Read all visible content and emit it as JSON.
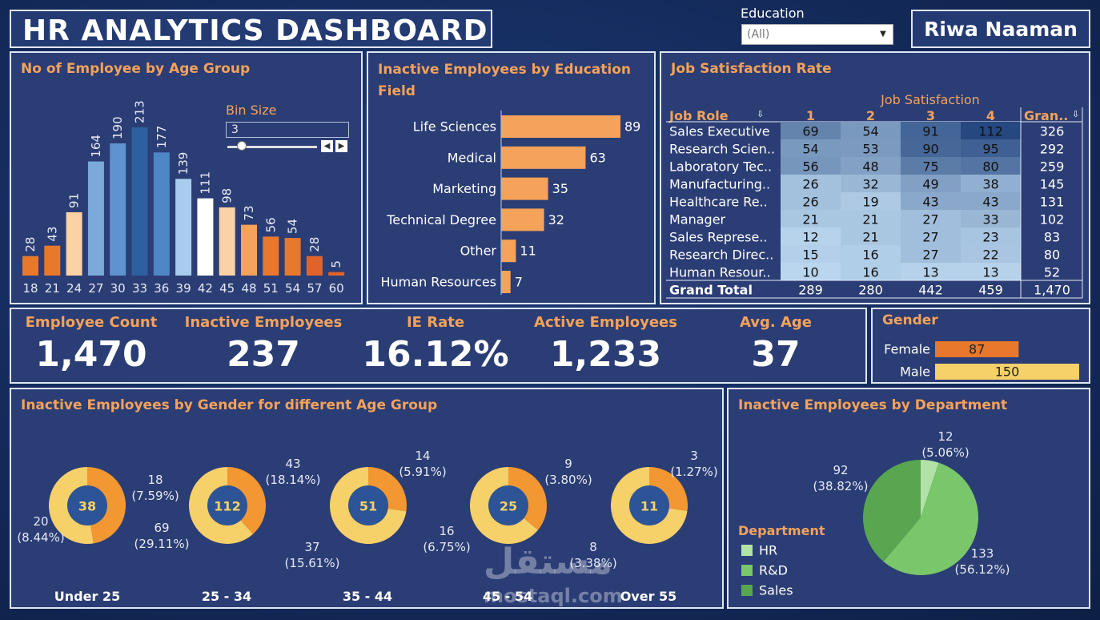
{
  "dashboard_title": "HR ANALYTICS DASHBOARD",
  "author_name": "Riwa Naaman",
  "filter": {
    "label": "Education",
    "value": "(All)"
  },
  "age_panel": {
    "title": "No of Employee by Age Group",
    "bin_label": "Bin Size",
    "bin_value": "3"
  },
  "edu_panel": {
    "title_line1": "Inactive Employees by Education",
    "title_line2": "Field"
  },
  "js_panel": {
    "title": "Job Satisfaction Rate",
    "col_group": "Job Satisfaction",
    "row_header": "Job Role",
    "cols": [
      "1",
      "2",
      "3",
      "4"
    ],
    "grand_header": "Gran..",
    "rows": [
      {
        "role": "Sales Executive",
        "vals": [
          69,
          54,
          91,
          112
        ],
        "total": "326"
      },
      {
        "role": "Research Scien..",
        "vals": [
          54,
          53,
          90,
          95
        ],
        "total": "292"
      },
      {
        "role": "Laboratory Tec..",
        "vals": [
          56,
          48,
          75,
          80
        ],
        "total": "259"
      },
      {
        "role": "Manufacturing..",
        "vals": [
          26,
          32,
          49,
          38
        ],
        "total": "145"
      },
      {
        "role": "Healthcare Re..",
        "vals": [
          26,
          19,
          43,
          43
        ],
        "total": "131"
      },
      {
        "role": "Manager",
        "vals": [
          21,
          21,
          27,
          33
        ],
        "total": "102"
      },
      {
        "role": "Sales Represe..",
        "vals": [
          12,
          21,
          27,
          23
        ],
        "total": "83"
      },
      {
        "role": "Research Direc..",
        "vals": [
          15,
          16,
          27,
          22
        ],
        "total": "80"
      },
      {
        "role": "Human Resour..",
        "vals": [
          10,
          16,
          13,
          13
        ],
        "total": "52"
      }
    ],
    "grand_total_label": "Grand Total",
    "grand_totals": [
      "289",
      "280",
      "442",
      "459",
      "1,470"
    ]
  },
  "kpis": [
    {
      "label": "Employee Count",
      "value": "1,470"
    },
    {
      "label": "Inactive Employees",
      "value": "237"
    },
    {
      "label": "IE Rate",
      "value": "16.12%"
    },
    {
      "label": "Active Employees",
      "value": "1,233"
    },
    {
      "label": "Avg. Age",
      "value": "37"
    }
  ],
  "gender_panel": {
    "title": "Gender"
  },
  "donut_panel": {
    "title": "Inactive Employees by Gender for different Age Group"
  },
  "dept_panel": {
    "title": "Inactive Employees by Department",
    "legend_title": "Department"
  },
  "watermark": {
    "arabic": "مستقل",
    "latin": "mostaql.com"
  },
  "colors": {
    "orange": "#f5a25a",
    "dark_orange": "#e8782c",
    "light_orange": "#fbd2a6",
    "yellow": "#f6d068",
    "donut_orange": "#f29731",
    "navy": "#2d5496",
    "hr_green": "#b3e2a6",
    "rd_green": "#79c66b",
    "sales_green": "#58a650"
  },
  "chart_data": [
    {
      "type": "bar",
      "id": "age",
      "categories": [
        "18",
        "21",
        "24",
        "27",
        "30",
        "33",
        "36",
        "39",
        "42",
        "45",
        "48",
        "51",
        "54",
        "57",
        "60"
      ],
      "values": [
        28,
        43,
        91,
        164,
        190,
        213,
        177,
        139,
        111,
        98,
        73,
        56,
        54,
        28,
        5
      ],
      "colors": [
        "#e8782c",
        "#e8782c",
        "#fbd2a6",
        "#7ba9d9",
        "#5d93cf",
        "#2e5f9e",
        "#4f86c6",
        "#a7ccec",
        "#ffffff",
        "#fbd2a6",
        "#f5a25a",
        "#e8782c",
        "#e8782c",
        "#e0642a",
        "#e0642a"
      ],
      "title": "No of Employee by Age Group"
    },
    {
      "type": "bar",
      "id": "education",
      "orientation": "horizontal",
      "categories": [
        "Life Sciences",
        "Medical",
        "Marketing",
        "Technical Degree",
        "Other",
        "Human Resources"
      ],
      "values": [
        89,
        63,
        35,
        32,
        11,
        7
      ]
    },
    {
      "type": "heatmap",
      "id": "job_satisfaction",
      "x": [
        "1",
        "2",
        "3",
        "4"
      ],
      "y": [
        "Sales Executive",
        "Research Scien..",
        "Laboratory Tec..",
        "Manufacturing..",
        "Healthcare Re..",
        "Manager",
        "Sales Represe..",
        "Research Direc..",
        "Human Resour.."
      ],
      "values": [
        [
          69,
          54,
          91,
          112
        ],
        [
          54,
          53,
          90,
          95
        ],
        [
          56,
          48,
          75,
          80
        ],
        [
          26,
          32,
          49,
          38
        ],
        [
          26,
          19,
          43,
          43
        ],
        [
          21,
          21,
          27,
          33
        ],
        [
          12,
          21,
          27,
          23
        ],
        [
          15,
          16,
          27,
          22
        ],
        [
          10,
          16,
          13,
          13
        ]
      ]
    },
    {
      "type": "bar",
      "id": "gender",
      "orientation": "horizontal",
      "categories": [
        "Female",
        "Male"
      ],
      "values": [
        87,
        150
      ]
    },
    {
      "type": "pie",
      "id": "gender_age_donuts",
      "donuts": [
        {
          "label": "Under 25",
          "total": "38",
          "orange": 18,
          "yellow": 20,
          "orange_label": [
            "18",
            "(7.59%)"
          ],
          "yellow_label": [
            "20",
            "(8.44%)"
          ]
        },
        {
          "label": "25 - 34",
          "total": "112",
          "orange": 43,
          "yellow": 69,
          "orange_label": [
            "43",
            "(18.14%)"
          ],
          "yellow_label": [
            "69",
            "(29.11%)"
          ]
        },
        {
          "label": "35 - 44",
          "total": "51",
          "orange": 14,
          "yellow": 37,
          "orange_label": [
            "14",
            "(5.91%)"
          ],
          "yellow_label": [
            "37",
            "(15.61%)"
          ]
        },
        {
          "label": "45 - 54",
          "total": "25",
          "orange": 9,
          "yellow": 16,
          "orange_label": [
            "9",
            "(3.80%)"
          ],
          "yellow_label": [
            "16",
            "(6.75%)"
          ]
        },
        {
          "label": "Over 55",
          "total": "11",
          "orange": 3,
          "yellow": 8,
          "orange_label": [
            "3",
            "(1.27%)"
          ],
          "yellow_label": [
            "8",
            "(3.38%)"
          ]
        }
      ]
    },
    {
      "type": "pie",
      "id": "department",
      "categories": [
        "HR",
        "R&D",
        "Sales"
      ],
      "values": [
        12,
        133,
        92
      ],
      "labels": [
        [
          "12",
          "(5.06%)"
        ],
        [
          "133",
          "(56.12%)"
        ],
        [
          "92",
          "(38.82%)"
        ]
      ]
    }
  ]
}
